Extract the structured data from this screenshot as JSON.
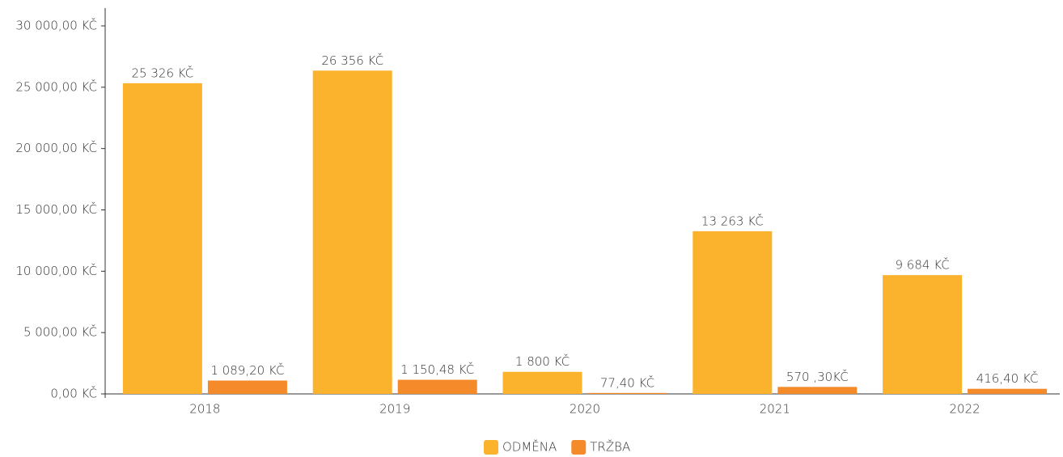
{
  "chart_data": {
    "type": "bar",
    "categories": [
      "2018",
      "2019",
      "2020",
      "2021",
      "2022"
    ],
    "series": [
      {
        "name": "ODMĚNA",
        "color": "#fbb32e",
        "values": [
          25326,
          26356,
          1800,
          13263,
          9684
        ],
        "value_labels": [
          "25 326 KČ",
          "26 356 KČ",
          "1 800 KČ",
          "13 263 KČ",
          "9 684 KČ"
        ]
      },
      {
        "name": "TRŽBA",
        "color": "#f58a2a",
        "values": [
          1089.2,
          1150.48,
          77.4,
          570.3,
          416.4
        ],
        "value_labels": [
          "1 089,20 KČ",
          "1 150,48 KČ",
          "77,40 KČ",
          "570 ,30KČ",
          "416,40 KČ"
        ]
      }
    ],
    "ylim": [
      0,
      30000
    ],
    "yticks": [
      {
        "value": 0,
        "label": "0,00 KČ"
      },
      {
        "value": 5000,
        "label": "5 000,00 KČ"
      },
      {
        "value": 10000,
        "label": "10 000,00 KČ"
      },
      {
        "value": 15000,
        "label": "15 000,00 KČ"
      },
      {
        "value": 20000,
        "label": "20 000,00 KČ"
      },
      {
        "value": 25000,
        "label": "25 000,00 KČ"
      },
      {
        "value": 30000,
        "label": "30 000,00 KČ"
      }
    ],
    "grid": false,
    "legend": "bottom"
  }
}
